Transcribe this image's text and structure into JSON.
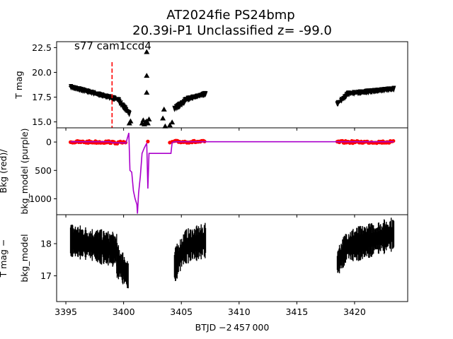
{
  "chart_data": {
    "type": "scatter",
    "title_line1": "AT2024fie  PS24bmp",
    "title_line2": "20.39i-P1 Unclassified z= -99.0",
    "xlabel": "BTJD −2 457 000",
    "xlim": [
      3394.2,
      3424.6
    ],
    "x_ticks": [
      3395,
      3400,
      3405,
      3410,
      3415,
      3420
    ],
    "annotation": "s77 cam1ccd4",
    "marker_line": {
      "x": 3399.0,
      "color": "#ff0000"
    },
    "colors": {
      "mag": "#000000",
      "bkg": "#ff0000",
      "bkg_model": "#aa00cc"
    },
    "panels": [
      {
        "ylabel": [
          "T mag"
        ],
        "ylim": [
          23.1,
          14.4
        ],
        "y_ticks": [
          15.0,
          17.5,
          20.0,
          22.5
        ],
        "y_tick_labels": [
          "15.0",
          "17.5",
          "20.0",
          "22.5"
        ],
        "series": [
          {
            "segments": [
              {
                "x0": 3395.4,
                "x1": 3399.6,
                "y0": 18.5,
                "y1": 17.2,
                "band": 0.7
              },
              {
                "x0": 3399.6,
                "x1": 3400.5,
                "y0": 17.0,
                "y1": 15.8,
                "band": 0.8
              },
              {
                "x0": 3404.4,
                "x1": 3405.3,
                "y0": 16.3,
                "y1": 17.0,
                "band": 0.8
              },
              {
                "x0": 3405.3,
                "x1": 3407.1,
                "y0": 17.2,
                "y1": 17.8,
                "band": 0.7
              },
              {
                "x0": 3418.5,
                "x1": 3419.3,
                "y0": 16.8,
                "y1": 17.6,
                "band": 0.7
              },
              {
                "x0": 3419.3,
                "x1": 3423.4,
                "y0": 17.8,
                "y1": 18.3,
                "band": 0.7
              }
            ],
            "points": [
              [
                3400.5,
                14.9
              ],
              [
                3400.6,
                15.1
              ],
              [
                3401.6,
                14.9
              ],
              [
                3401.7,
                15.2
              ],
              [
                3401.8,
                14.8
              ],
              [
                3401.9,
                15.0
              ],
              [
                3402.0,
                15.1
              ],
              [
                3402.1,
                14.9
              ],
              [
                3402.2,
                15.3
              ],
              [
                3402.0,
                18.0
              ],
              [
                3402.0,
                19.7
              ],
              [
                3402.0,
                22.1
              ],
              [
                3403.4,
                15.4
              ],
              [
                3403.5,
                16.3
              ],
              [
                3403.6,
                14.6
              ],
              [
                3404.0,
                14.7
              ],
              [
                3404.2,
                15.0
              ]
            ]
          }
        ]
      },
      {
        "ylabel": [
          "Bkg (red)/",
          "bkg_model (purple)"
        ],
        "ylim": [
          -250,
          1280
        ],
        "y_ticks": [
          0,
          500,
          1000
        ],
        "y_tick_labels": [
          "0",
          "500",
          "1000"
        ],
        "series": [
          {
            "name": "bkg",
            "ranges": [
              [
                3395.4,
                3399.0,
                0
              ],
              [
                3399.0,
                3400.2,
                10
              ],
              [
                3404.4,
                3407.1,
                -5
              ],
              [
                3418.5,
                3423.4,
                0
              ]
            ],
            "points": [
              [
                3402.1,
                -10
              ],
              [
                3404.0,
                10
              ],
              [
                3404.2,
                -5
              ]
            ]
          },
          {
            "name": "bkg_model",
            "line": [
              [
                3395.4,
                -5
              ],
              [
                3398.8,
                -5
              ],
              [
                3399.0,
                10
              ],
              [
                3400.0,
                15
              ],
              [
                3400.2,
                20
              ],
              [
                3400.45,
                -160
              ],
              [
                3400.55,
                500
              ],
              [
                3400.7,
                530
              ],
              [
                3400.85,
                860
              ],
              [
                3401.0,
                1000
              ],
              [
                3401.15,
                1100
              ],
              [
                3401.2,
                1260
              ],
              [
                3401.3,
                900
              ],
              [
                3401.45,
                600
              ],
              [
                3401.6,
                200
              ],
              [
                3401.8,
                100
              ],
              [
                3402.0,
                20
              ],
              [
                3402.1,
                820
              ],
              [
                3402.2,
                200
              ],
              [
                3403.8,
                200
              ],
              [
                3404.1,
                200
              ],
              [
                3404.2,
                10
              ],
              [
                3404.4,
                -5
              ],
              [
                3407.1,
                -5
              ],
              [
                3418.5,
                -5
              ],
              [
                3423.4,
                -5
              ]
            ]
          }
        ]
      },
      {
        "ylabel": [
          "T mag −",
          "bkg_model"
        ],
        "ylim": [
          18.9,
          16.2
        ],
        "y_ticks": [
          17,
          18
        ],
        "y_tick_labels": [
          "17",
          "18"
        ],
        "series": [
          {
            "segments": [
              {
                "x0": 3395.4,
                "x1": 3399.4,
                "y0": 18.1,
                "y1": 17.8,
                "band": 1.1
              },
              {
                "x0": 3399.4,
                "x1": 3400.4,
                "y0": 17.5,
                "y1": 17.0,
                "band": 1.1
              },
              {
                "x0": 3404.4,
                "x1": 3405.3,
                "y0": 17.3,
                "y1": 17.9,
                "band": 1.1
              },
              {
                "x0": 3405.3,
                "x1": 3407.1,
                "y0": 17.9,
                "y1": 18.1,
                "band": 1.1
              },
              {
                "x0": 3418.5,
                "x1": 3419.3,
                "y0": 17.4,
                "y1": 17.9,
                "band": 1.0
              },
              {
                "x0": 3419.3,
                "x1": 3423.4,
                "y0": 17.9,
                "y1": 18.3,
                "band": 1.1
              }
            ]
          }
        ]
      }
    ]
  }
}
